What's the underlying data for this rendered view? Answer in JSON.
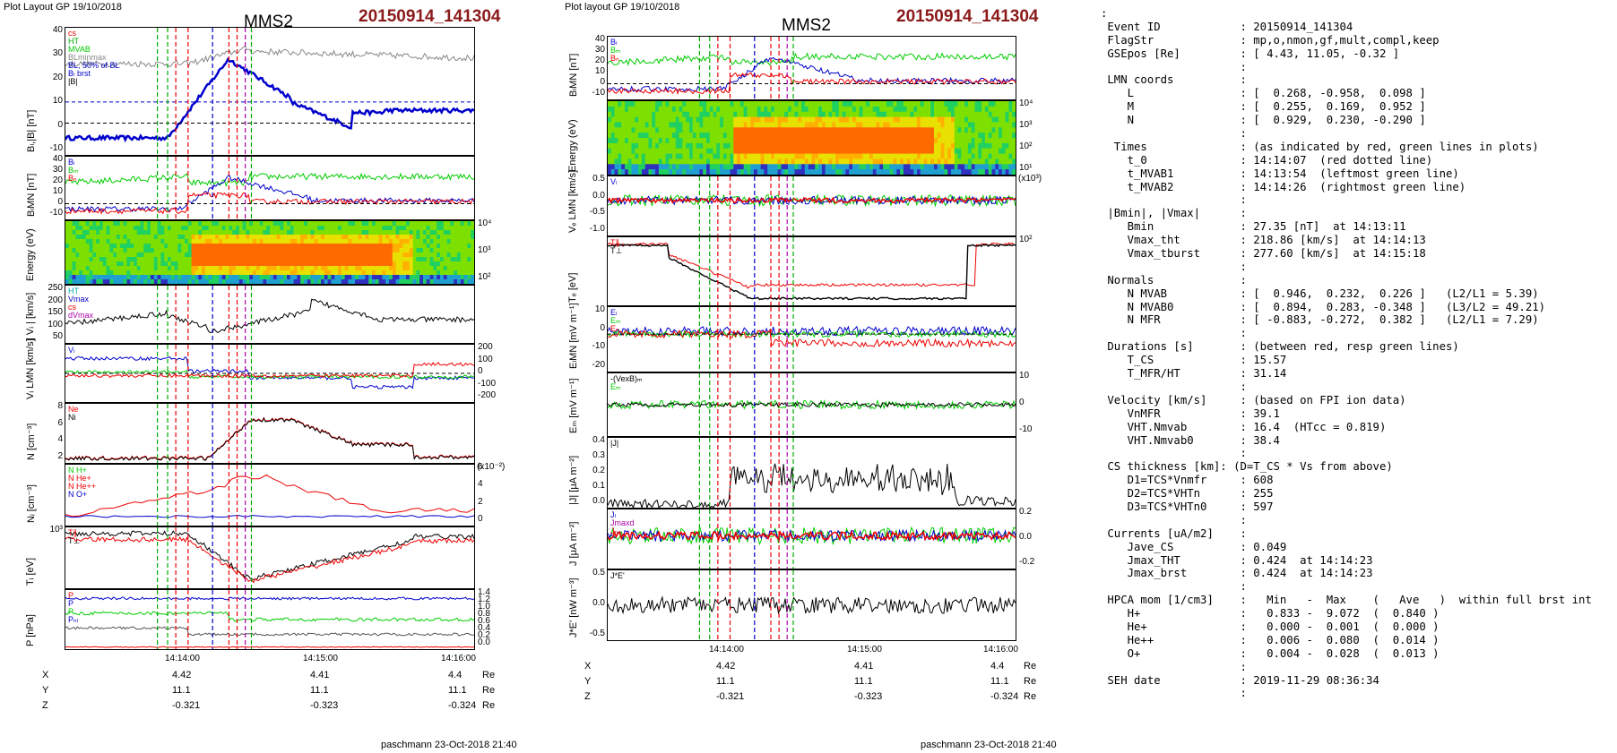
{
  "left": {
    "layout_label": "Plot Layout GP 19/10/2018",
    "spacecraft": "MMS2",
    "event": "20150914_141304",
    "footer": "paschmann 23-Oct-2018 21:40",
    "x_ticks": [
      "14:14:00",
      "14:15:00",
      "14:16:00"
    ],
    "coords": {
      "X": {
        "label": "X",
        "vals": [
          "4.42",
          "4.41",
          "4.4"
        ],
        "unit": "Re"
      },
      "Y": {
        "label": "Y",
        "vals": [
          "11.1",
          "11.1",
          "11.1"
        ],
        "unit": "Re"
      },
      "Z": {
        "label": "Z",
        "vals": [
          "-0.321",
          "-0.323",
          "-0.324"
        ],
        "unit": "Re"
      }
    },
    "panels": [
      {
        "ylabel": "Bₗ,|B| [nT]",
        "yticks": [
          "40",
          "30",
          "20",
          "10",
          "0",
          "-10"
        ],
        "legend": [
          "cs",
          "HT",
          "MVAB",
          "BLminmax",
          "BL, 50% of BL",
          "Bₗ brst",
          "|B|"
        ],
        "legend_colors": [
          "#e00",
          "#0a0",
          "#0c0",
          "#888",
          "#00c",
          "#00c",
          "#000"
        ]
      },
      {
        "ylabel": "BₗMN [nT]",
        "yticks": [
          "40",
          "30",
          "20",
          "10",
          "0",
          "-10"
        ],
        "legend": [
          "Bₗ",
          "Bₘ",
          "Bₙ"
        ],
        "legend_colors": [
          "#00c",
          "#0c0",
          "#e00"
        ]
      },
      {
        "ylabel": "Energy (eV)",
        "yticks_r": [
          "10⁴",
          "10³",
          "10²"
        ]
      },
      {
        "ylabel": "| Vᵢ | [km/s]",
        "yticks": [
          "250",
          "200",
          "150",
          "100",
          "50"
        ],
        "legend": [
          "HT",
          "Vmax",
          "cs",
          "dVmax"
        ],
        "legend_colors": [
          "#0aa",
          "#00c",
          "#e00",
          "#a0a"
        ]
      },
      {
        "ylabel": "Vᵢ LMN [km/s]",
        "yticks_r": [
          "200",
          "100",
          "0",
          "-100",
          "-200"
        ],
        "legend": [
          "Vₗ"
        ],
        "legend_colors": [
          "#00c"
        ]
      },
      {
        "ylabel": "N [cm⁻³]",
        "yticks": [
          "8",
          "6",
          "4",
          "2"
        ],
        "legend": [
          "Ne",
          "Ni"
        ],
        "legend_colors": [
          "#e00",
          "#000"
        ]
      },
      {
        "ylabel": "Nᵢ [cm⁻³]",
        "unit_note": "(x10⁻²)",
        "yticks_r": [
          "6",
          "4",
          "2",
          "0"
        ],
        "legend": [
          "N H+",
          "N He+",
          "N He++",
          "N O+"
        ],
        "legend_colors": [
          "#0c0",
          "#e00",
          "#e00",
          "#00c"
        ]
      },
      {
        "ylabel": "Tᵢ [eV]",
        "yticks": [
          "10³"
        ],
        "legend": [
          "T∥",
          "T⊥"
        ],
        "legend_colors": [
          "#e00",
          "#000"
        ]
      },
      {
        "ylabel": "P [nPa]",
        "yticks_r": [
          "1.4",
          "1.2",
          "1.0",
          "0.8",
          "0.6",
          "0.4",
          "0.2",
          "0.0"
        ],
        "legend": [
          "P",
          "P",
          "P",
          "Pₙₗ"
        ],
        "legend_colors": [
          "#e00",
          "#00c",
          "#0c0",
          "#00c"
        ]
      }
    ]
  },
  "mid": {
    "layout_label": "Plot layout GP 19/10/2018",
    "spacecraft": "MMS2",
    "event": "20150914_141304",
    "footer": "paschmann 23-Oct-2018 21:40",
    "x_ticks": [
      "14:14:00",
      "14:15:00",
      "14:16:00"
    ],
    "coords": {
      "X": {
        "label": "X",
        "vals": [
          "4.42",
          "4.41",
          "4.4"
        ],
        "unit": "Re"
      },
      "Y": {
        "label": "Y",
        "vals": [
          "11.1",
          "11.1",
          "11.1"
        ],
        "unit": "Re"
      },
      "Z": {
        "label": "Z",
        "vals": [
          "-0.321",
          "-0.323",
          "-0.324"
        ],
        "unit": "Re"
      }
    },
    "panels": [
      {
        "ylabel": "BₗMN [nT]",
        "yticks": [
          "40",
          "30",
          "20",
          "10",
          "0",
          "-10"
        ],
        "legend": [
          "Bₗ",
          "Bₘ",
          "Bₙ"
        ],
        "legend_colors": [
          "#00c",
          "#0c0",
          "#e00"
        ]
      },
      {
        "ylabel": "Energy (eV)",
        "yticks_r": [
          "10⁴",
          "10³",
          "10²",
          "10¹"
        ]
      },
      {
        "ylabel": "Vₑ LMN [km/s]",
        "unit_note": "(x10³)",
        "yticks": [
          "0.5",
          "0.0",
          "-0.5",
          "-1.0"
        ],
        "legend": [
          "Vₗ"
        ],
        "legend_colors": [
          "#00c"
        ]
      },
      {
        "ylabel": "Tₑ [eV]",
        "yticks_r": [
          "10²"
        ],
        "legend": [
          "T∥",
          "T⊥"
        ],
        "legend_colors": [
          "#e00",
          "#000"
        ]
      },
      {
        "ylabel": "EₗMN [mV m⁻¹]",
        "yticks": [
          "10",
          "0",
          "-10",
          "-20"
        ],
        "legend": [
          "Eₗ",
          "Eₘ",
          "Eₙ"
        ],
        "legend_colors": [
          "#00c",
          "#0c0",
          "#e00"
        ]
      },
      {
        "ylabel": "Eₘ [mV m⁻¹]",
        "yticks_r": [
          "10",
          "0",
          "-10"
        ],
        "legend": [
          "-(VexB)ₘ",
          "Eₘ"
        ],
        "legend_colors": [
          "#000",
          "#0c0"
        ]
      },
      {
        "ylabel": "|J| [μA m⁻²]",
        "yticks": [
          "0.4",
          "0.3",
          "0.2",
          "0.1",
          "0.0"
        ],
        "legend": [
          "|J|"
        ],
        "legend_colors": [
          "#000"
        ]
      },
      {
        "ylabel": "J [μA m⁻²]",
        "yticks_r": [
          "0.2",
          "0.0",
          "-0.2"
        ],
        "legend": [
          "Jₗ",
          "Jmaxd",
          "Jₙ"
        ],
        "legend_colors": [
          "#00c",
          "#a0a",
          "#e00"
        ]
      },
      {
        "ylabel": "J*E' [nW m⁻³]",
        "yticks": [
          "0.5",
          "0.0",
          "-0.5"
        ],
        "legend": [
          "J*E'"
        ],
        "legend_colors": [
          "#000"
        ]
      }
    ]
  },
  "info_lines": [
    ":",
    " Event ID            : 20150914_141304",
    " FlagStr             : mp,o,nmon,gf,mult,compl,keep",
    " GSEpos [Re]         : [ 4.43, 11.05, -0.32 ]",
    "                     :",
    " LMN coords          :",
    "    L                : [  0.268, -0.958,  0.098 ]",
    "    M                : [  0.255,  0.169,  0.952 ]",
    "    N                : [  0.929,  0.230, -0.290 ]",
    "                     :",
    "  Times              : (as indicated by red, green lines in plots)",
    "    t_0              : 14:14:07  (red dotted line)",
    "    t_MVAB1          : 14:13:54  (leftmost green line)",
    "    t_MVAB2          : 14:14:26  (rightmost green line)",
    "                     :",
    " |Bmin|, |Vmax|      :",
    "    Bmin             : 27.35 [nT]  at 14:13:11",
    "    Vmax_tht         : 218.86 [km/s]  at 14:14:13",
    "    Vmax_tburst      : 277.60 [km/s]  at 14:15:18",
    "                     :",
    " Normals             :",
    "    N MVAB           : [  0.946,  0.232,  0.226 ]   (L2/L1 = 5.39)",
    "    N MVAB0          : [  0.894,  0.283, -0.348 ]   (L3/L2 = 49.21)",
    "    N MFR            : [ -0.883, -0.272,  0.382 ]   (L2/L1 = 7.29)",
    "                     :",
    " Durations [s]       : (between red, resp green lines)",
    "    T_CS             : 15.57",
    "    T_MFR/HT         : 31.14",
    "                     :",
    " Velocity [km/s]     : (based on FPI ion data)",
    "    VnMFR            : 39.1",
    "    VHT.Nmvab        : 16.4  (HTcc = 0.819)",
    "    VHT.Nmvab0       : 38.4",
    "                     :",
    " CS thickness [km]: (D=T_CS * Vs from above)",
    "    D1=TCS*Vnmfr     : 608",
    "    D2=TCS*VHTn      : 255",
    "    D3=TCS*VHTn0     : 597",
    "                     :",
    " Currents [uA/m2]    :",
    "    Jave_CS          : 0.049",
    "    Jmax_THT         : 0.424  at 14:14:23",
    "    Jmax_brst        : 0.424  at 14:14:23",
    "                     :",
    " HPCA mom [1/cm3]    :   Min   -  Max    (   Ave   )  within full brst int",
    "    H+               :   0.833 -  9.072  (  0.840 )",
    "    He+              :   0.000 -  0.001  (  0.000 )",
    "    He++             :   0.006 -  0.080  (  0.014 )",
    "    O+               :   0.004 -  0.028  (  0.013 )",
    "                     :",
    " SEH date            : 2019-11-29 08:36:34",
    "                     :"
  ],
  "colors": {
    "event_title": "#8b1a1a",
    "blue": "#0000cc",
    "green": "#00cc00",
    "red": "#ee0000",
    "black": "#000000",
    "gray": "#888888",
    "magenta": "#cc00cc"
  }
}
